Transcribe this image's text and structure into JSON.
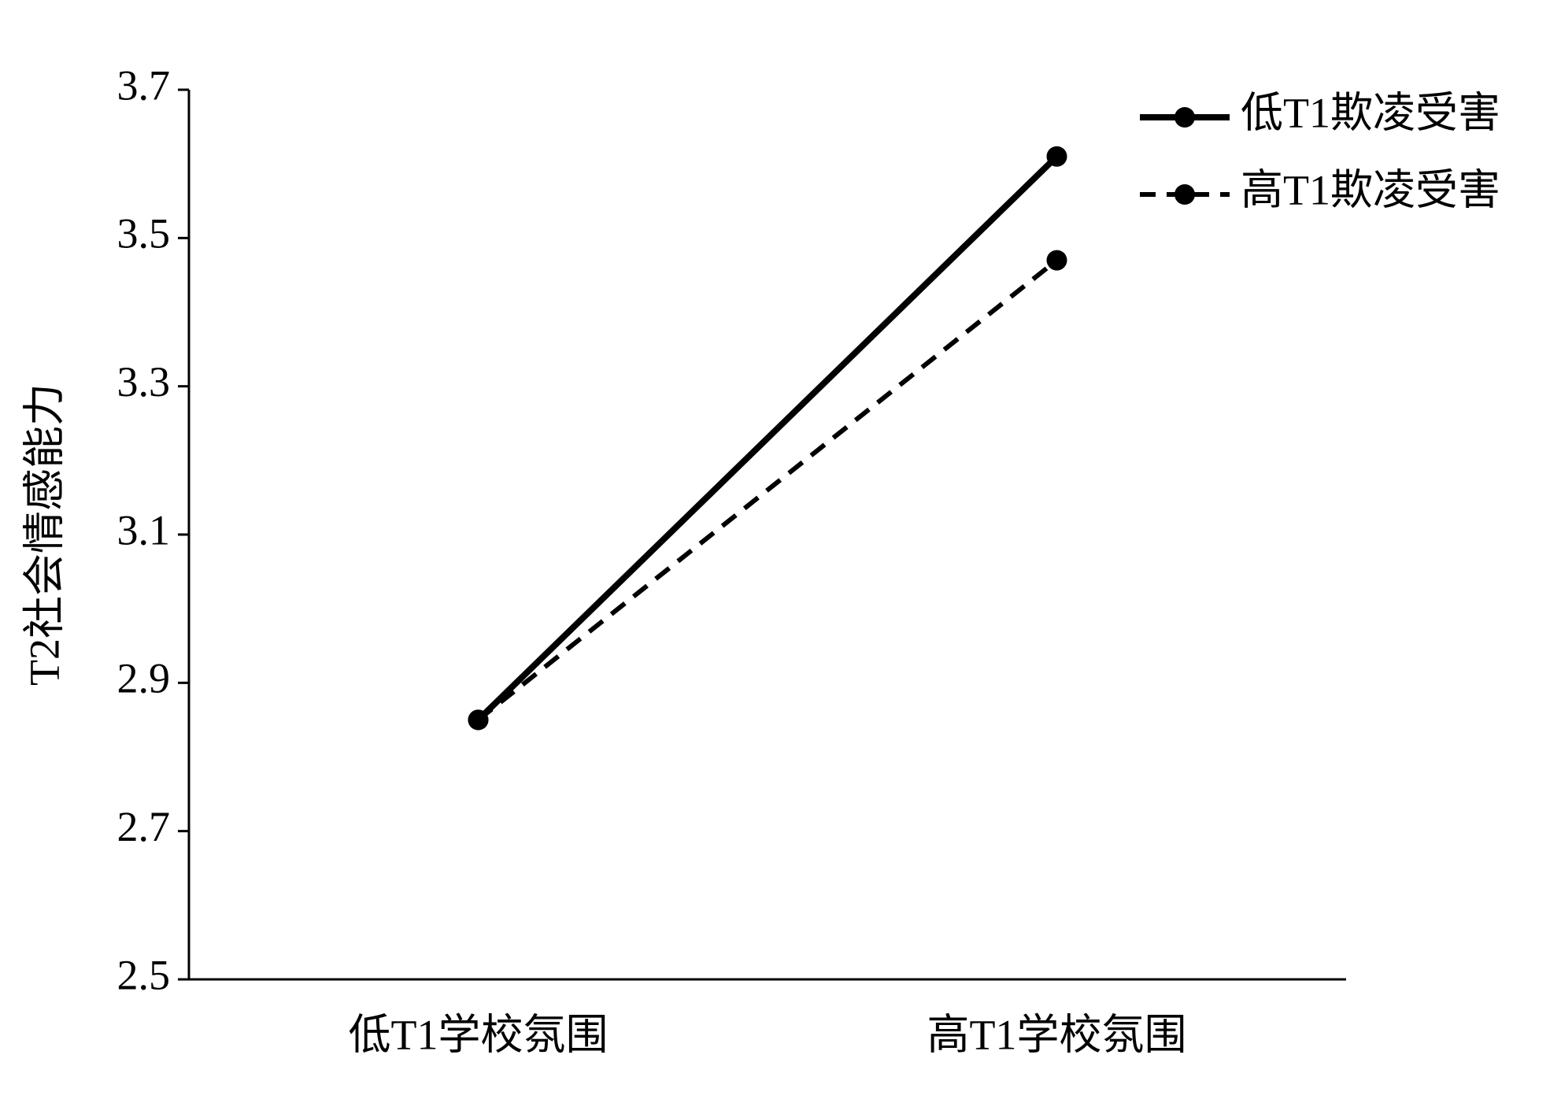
{
  "chart_data": {
    "type": "line",
    "ylabel": "T2社会情感能力",
    "categories": [
      "低T1学校氛围",
      "高T1学校氛围"
    ],
    "series": [
      {
        "name": "低T1欺凌受害",
        "color": "#000000",
        "linestyle": "solid",
        "values": [
          2.85,
          3.61
        ]
      },
      {
        "name": "高T1欺凌受害",
        "color": "#000000",
        "linestyle": "dashed",
        "values": [
          2.85,
          3.47
        ]
      }
    ],
    "ylim": [
      2.5,
      3.7
    ],
    "yticks": [
      2.5,
      2.7,
      2.9,
      3.1,
      3.3,
      3.5,
      3.7
    ],
    "grid": false,
    "legend": "upper right"
  }
}
